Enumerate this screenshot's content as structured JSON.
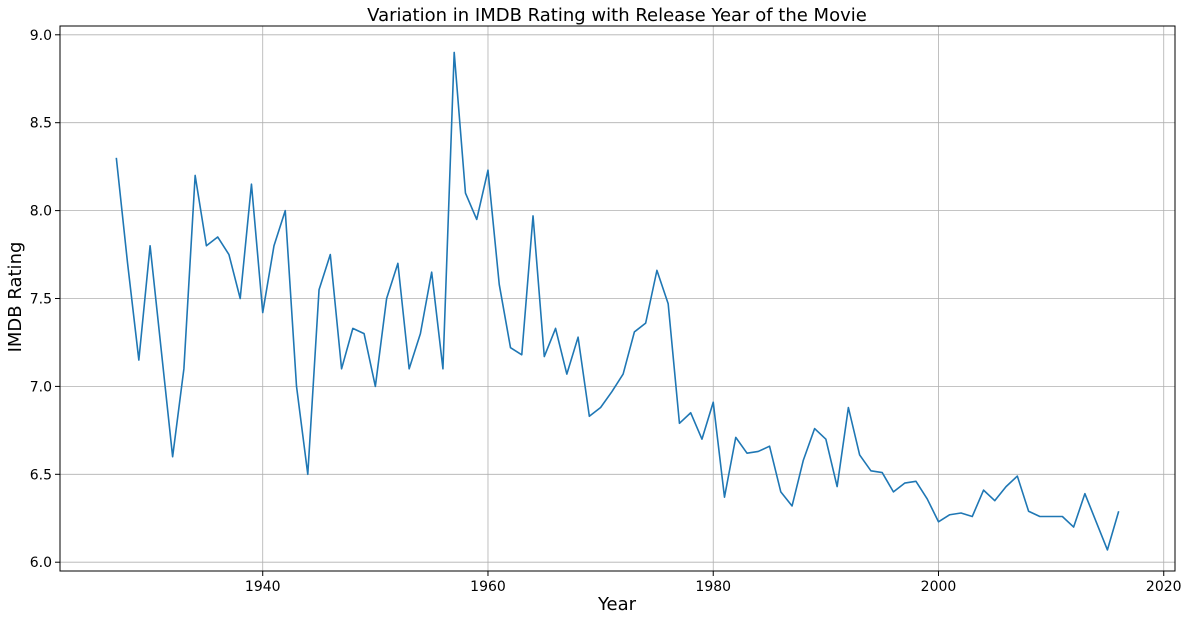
{
  "chart_data": {
    "type": "line",
    "title": "Variation in IMDB Rating with Release Year of the Movie",
    "xlabel": "Year",
    "ylabel": "IMDB Rating",
    "xlim": [
      1922,
      2021
    ],
    "ylim": [
      5.95,
      9.05
    ],
    "x_ticks": [
      1940,
      1960,
      1980,
      2000,
      2020
    ],
    "y_ticks": [
      6.0,
      6.5,
      7.0,
      7.5,
      8.0,
      8.5,
      9.0
    ],
    "grid": true,
    "line_color": "#1f77b4",
    "series": [
      {
        "x": [
          1927,
          1928,
          1929,
          1930,
          1931,
          1932,
          1933,
          1934,
          1935,
          1936,
          1937,
          1938,
          1939,
          1940,
          1941,
          1942,
          1943,
          1944,
          1945,
          1946,
          1947,
          1948,
          1949,
          1950,
          1951,
          1952,
          1953,
          1954,
          1955,
          1956,
          1957,
          1958,
          1959,
          1960,
          1961,
          1962,
          1963,
          1964,
          1965,
          1966,
          1967,
          1968,
          1969,
          1970,
          1971,
          1972,
          1973,
          1974,
          1975,
          1976,
          1977,
          1978,
          1979,
          1980,
          1981,
          1982,
          1983,
          1984,
          1985,
          1986,
          1987,
          1988,
          1989,
          1990,
          1991,
          1992,
          1993,
          1994,
          1995,
          1996,
          1997,
          1998,
          1999,
          2000,
          2001,
          2002,
          2003,
          2004,
          2005,
          2006,
          2007,
          2008,
          2009,
          2010,
          2011,
          2012,
          2013,
          2014,
          2015,
          2016
        ],
        "y": [
          8.3,
          7.7,
          7.15,
          7.8,
          7.2,
          6.6,
          7.1,
          8.2,
          7.8,
          7.85,
          7.75,
          7.5,
          8.15,
          7.42,
          7.8,
          8.0,
          7.0,
          6.5,
          7.55,
          7.75,
          7.1,
          7.33,
          7.3,
          7.0,
          7.5,
          7.7,
          7.1,
          7.3,
          7.65,
          7.1,
          8.9,
          8.1,
          7.95,
          8.23,
          7.58,
          7.22,
          7.18,
          7.97,
          7.17,
          7.33,
          7.07,
          7.28,
          6.83,
          6.88,
          6.97,
          7.07,
          7.31,
          7.36,
          7.66,
          7.47,
          6.79,
          6.85,
          6.7,
          6.91,
          6.37,
          6.71,
          6.62,
          6.63,
          6.66,
          6.4,
          6.32,
          6.58,
          6.76,
          6.7,
          6.43,
          6.88,
          6.61,
          6.52,
          6.51,
          6.4,
          6.45,
          6.46,
          6.36,
          6.23,
          6.27,
          6.28,
          6.26,
          6.41,
          6.35,
          6.43,
          6.49,
          6.29,
          6.26,
          6.26,
          6.26,
          6.2,
          6.39,
          6.23,
          6.07,
          6.29
        ]
      }
    ]
  }
}
